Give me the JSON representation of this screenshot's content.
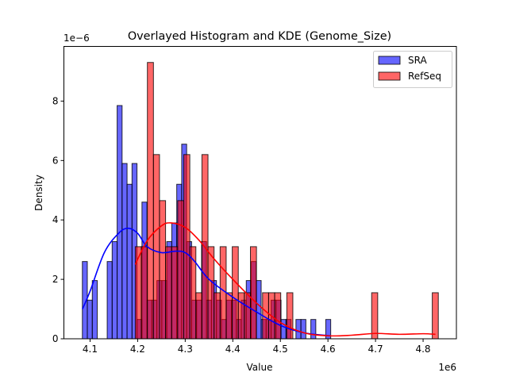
{
  "chart_data": {
    "type": "histogram+kde",
    "title": "Overlayed Histogram and KDE (Genome_Size)",
    "xlabel": "Value",
    "ylabel": "Density",
    "x_offset_label": "1e6",
    "y_offset_label": "1e−6",
    "xlim": [
      4.045,
      4.87
    ],
    "ylim": [
      0,
      9.84
    ],
    "xticks": [
      "4.1",
      "4.2",
      "4.3",
      "4.4",
      "4.5",
      "4.6",
      "4.7",
      "4.8"
    ],
    "yticks": [
      "0",
      "2",
      "4",
      "6",
      "8"
    ],
    "grid": false,
    "legend_position": "top-right",
    "series": [
      {
        "name": "SRA",
        "color": "#0000ff",
        "fill": "#6666ff",
        "bin_start": 4.0838,
        "bin_width": 0.01044,
        "density": [
          2.6,
          1.3,
          1.96,
          0,
          0,
          2.6,
          3.27,
          7.85,
          5.9,
          5.2,
          5.9,
          0.65,
          4.6,
          1.3,
          1.3,
          1.96,
          1.96,
          3.27,
          3.9,
          5.2,
          6.55,
          3.27,
          1.3,
          1.3,
          3.27,
          1.3,
          1.96,
          1.3,
          0.65,
          1.3,
          1.3,
          0.65,
          1.3,
          1.96,
          2.6,
          1.96,
          0.65,
          0.65,
          1.3,
          1.3,
          0.65,
          0.65,
          0,
          0.65,
          0.65,
          0,
          0.65,
          0,
          0,
          0.65
        ],
        "kde": [
          [
            4.084,
            1.0
          ],
          [
            4.1,
            1.6
          ],
          [
            4.13,
            2.9
          ],
          [
            4.16,
            3.55
          ],
          [
            4.18,
            3.72
          ],
          [
            4.2,
            3.55
          ],
          [
            4.22,
            3.1
          ],
          [
            4.25,
            2.9
          ],
          [
            4.28,
            2.95
          ],
          [
            4.3,
            2.9
          ],
          [
            4.32,
            2.6
          ],
          [
            4.35,
            2.0
          ],
          [
            4.4,
            1.4
          ],
          [
            4.45,
            0.9
          ],
          [
            4.5,
            0.45
          ],
          [
            4.55,
            0.2
          ],
          [
            4.606,
            0.1
          ]
        ]
      },
      {
        "name": "RefSeq",
        "color": "#ff0000",
        "fill": "#ff6666",
        "bin_start": 4.195,
        "bin_width": 0.01274,
        "density": [
          3.1,
          3.1,
          9.3,
          6.2,
          4.65,
          3.1,
          3.1,
          4.65,
          6.2,
          3.1,
          1.55,
          6.2,
          3.1,
          1.55,
          3.1,
          1.55,
          3.1,
          1.55,
          1.55,
          3.1,
          0,
          1.55,
          1.55,
          1.55,
          0,
          1.55,
          0,
          0,
          0,
          0,
          0,
          0,
          0,
          0,
          0,
          0,
          0,
          0,
          0,
          1.55,
          0,
          0,
          0,
          0,
          0,
          0,
          0,
          0,
          0,
          1.55
        ],
        "kde": [
          [
            4.195,
            2.5
          ],
          [
            4.22,
            3.3
          ],
          [
            4.25,
            3.8
          ],
          [
            4.27,
            3.9
          ],
          [
            4.3,
            3.75
          ],
          [
            4.33,
            3.3
          ],
          [
            4.36,
            2.7
          ],
          [
            4.4,
            2.0
          ],
          [
            4.45,
            1.2
          ],
          [
            4.5,
            0.55
          ],
          [
            4.55,
            0.2
          ],
          [
            4.6,
            0.1
          ],
          [
            4.65,
            0.12
          ],
          [
            4.7,
            0.18
          ],
          [
            4.75,
            0.15
          ],
          [
            4.8,
            0.17
          ],
          [
            4.826,
            0.15
          ]
        ]
      }
    ]
  }
}
